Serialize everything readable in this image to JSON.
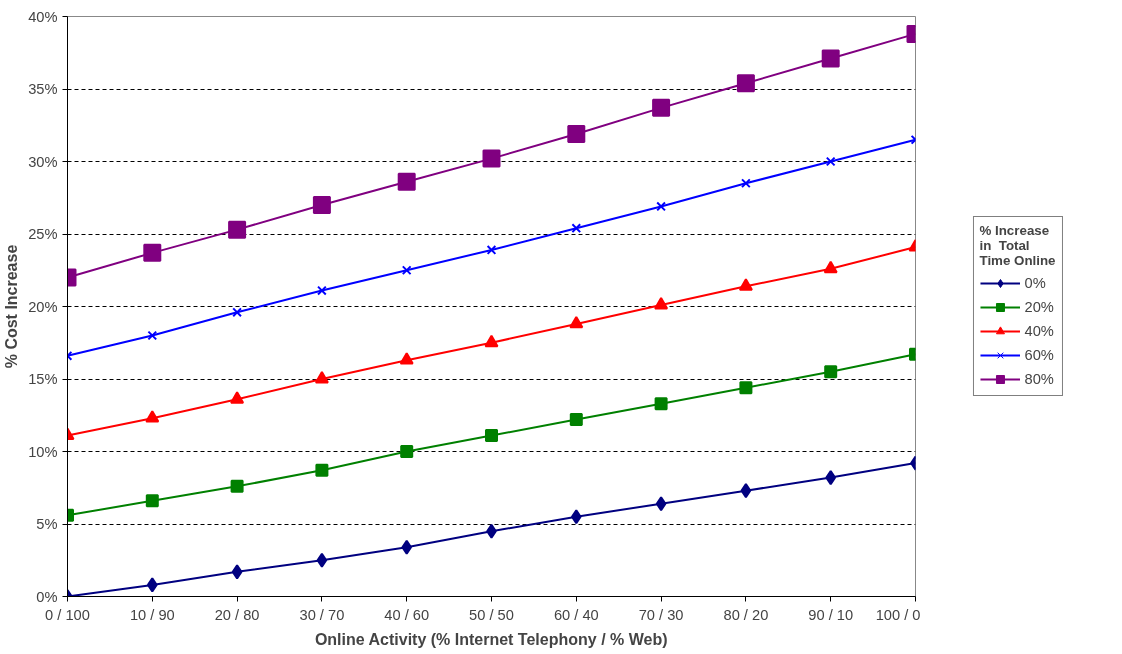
{
  "chart_data": {
    "type": "line",
    "xlabel": "Online Activity (% Internet Telephony / % Web)",
    "ylabel": "% Cost Increase",
    "legend_title": "% Increase in  Total Time Online",
    "categories": [
      "0 / 100",
      "10 / 90",
      "20 / 80",
      "30 / 70",
      "40 / 60",
      "50 / 50",
      "60 / 40",
      "70 / 30",
      "80 / 20",
      "90 / 10",
      "100 / 0"
    ],
    "series": [
      {
        "name": "0%",
        "color": "#000080",
        "marker": "diamond",
        "values": [
          0,
          0.8,
          1.7,
          2.5,
          3.4,
          4.5,
          5.5,
          6.4,
          7.3,
          8.2,
          9.2
        ]
      },
      {
        "name": "20%",
        "color": "#008000",
        "marker": "square",
        "values": [
          5.6,
          6.6,
          7.6,
          8.7,
          10.0,
          11.1,
          12.2,
          13.3,
          14.4,
          15.5,
          16.7
        ]
      },
      {
        "name": "40%",
        "color": "#ff0000",
        "marker": "triangle",
        "values": [
          11.1,
          12.3,
          13.6,
          15.0,
          16.3,
          17.5,
          18.8,
          20.1,
          21.4,
          22.6,
          24.1
        ]
      },
      {
        "name": "60%",
        "color": "#0000ff",
        "marker": "cross",
        "values": [
          16.6,
          18.0,
          19.6,
          21.1,
          22.5,
          23.9,
          25.4,
          26.9,
          28.5,
          30.0,
          31.5
        ]
      },
      {
        "name": "80%",
        "color": "#800080",
        "marker": "square",
        "values": [
          22.0,
          23.7,
          25.3,
          27.0,
          28.6,
          30.2,
          31.9,
          33.7,
          35.4,
          37.1,
          38.8
        ]
      }
    ],
    "ylim": [
      0,
      40
    ],
    "yticks": [
      {
        "value": 0,
        "label": "0%"
      },
      {
        "value": 5,
        "label": "5%"
      },
      {
        "value": 10,
        "label": "10%"
      },
      {
        "value": 15,
        "label": "15%"
      },
      {
        "value": 20,
        "label": "20%"
      },
      {
        "value": 25,
        "label": "25%"
      },
      {
        "value": 30,
        "label": "30%"
      },
      {
        "value": 35,
        "label": "35%"
      },
      {
        "value": 40,
        "label": "40%"
      }
    ],
    "grid": "y",
    "legend": "right",
    "line_style": "solid"
  }
}
